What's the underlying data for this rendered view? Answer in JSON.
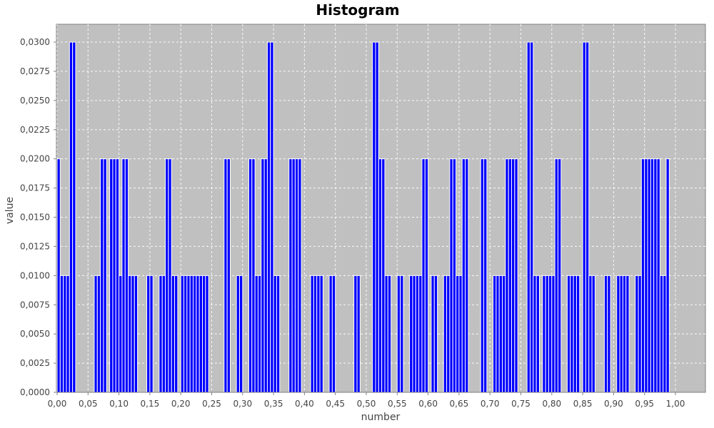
{
  "chart_data": {
    "type": "bar",
    "title": "Histogram",
    "xlabel": "number",
    "ylabel": "value",
    "xlim": [
      0.0,
      1.05
    ],
    "ylim": [
      0.0,
      0.031
    ],
    "grid": true,
    "x_ticks": [
      "0,00",
      "0,05",
      "0,10",
      "0,15",
      "0,20",
      "0,25",
      "0,30",
      "0,35",
      "0,40",
      "0,45",
      "0,50",
      "0,55",
      "0,60",
      "0,65",
      "0,70",
      "0,75",
      "0,80",
      "0,85",
      "0,90",
      "0,95",
      "1,00"
    ],
    "y_ticks": [
      "0,0000",
      "0,0025",
      "0,0050",
      "0,0075",
      "0,0100",
      "0,0125",
      "0,0150",
      "0,0175",
      "0,0200",
      "0,0225",
      "0,0250",
      "0,0275",
      "0,0300"
    ],
    "bin_width": 0.005,
    "bins_start": [
      0.0,
      0.005,
      0.01,
      0.015,
      0.02,
      0.025,
      0.03,
      0.035,
      0.06,
      0.065,
      0.07,
      0.075,
      0.085,
      0.09,
      0.095,
      0.1,
      0.105,
      0.11,
      0.115,
      0.12,
      0.125,
      0.13,
      0.135,
      0.145,
      0.15,
      0.165,
      0.17,
      0.175,
      0.18,
      0.185,
      0.19,
      0.2,
      0.205,
      0.21,
      0.215,
      0.22,
      0.225,
      0.23,
      0.235,
      0.24,
      0.27,
      0.275,
      0.29,
      0.295,
      0.31,
      0.315,
      0.32,
      0.325,
      0.33,
      0.335,
      0.34,
      0.345,
      0.35,
      0.355,
      0.36,
      0.365,
      0.375,
      0.38,
      0.385,
      0.39,
      0.395,
      0.41,
      0.415,
      0.42,
      0.425,
      0.43,
      0.435,
      0.44,
      0.445,
      0.48,
      0.485,
      0.51,
      0.515,
      0.52,
      0.525,
      0.53,
      0.535,
      0.55,
      0.555,
      0.57,
      0.575,
      0.58,
      0.585,
      0.59,
      0.595,
      0.605,
      0.61,
      0.625,
      0.63,
      0.635,
      0.64,
      0.645,
      0.65,
      0.655,
      0.66,
      0.685,
      0.69,
      0.695,
      0.705,
      0.71,
      0.715,
      0.72,
      0.725,
      0.73,
      0.735,
      0.74,
      0.76,
      0.765,
      0.77,
      0.775,
      0.785,
      0.79,
      0.795,
      0.8,
      0.805,
      0.81,
      0.825,
      0.83,
      0.835,
      0.84,
      0.845,
      0.85,
      0.855,
      0.86,
      0.865,
      0.87,
      0.885,
      0.89,
      0.905,
      0.91,
      0.915,
      0.92,
      0.925,
      0.93,
      0.935,
      0.94,
      0.945,
      0.95,
      0.955,
      0.96,
      0.965,
      0.97,
      0.975,
      0.98,
      0.985
    ],
    "values": [
      0.02,
      0.01,
      0.01,
      0.01,
      0.03,
      0.03,
      0.0,
      0.0,
      0.01,
      0.01,
      0.02,
      0.02,
      0.02,
      0.02,
      0.02,
      0.01,
      0.02,
      0.02,
      0.01,
      0.01,
      0.01,
      0.0,
      0.0,
      0.01,
      0.01,
      0.01,
      0.01,
      0.02,
      0.02,
      0.01,
      0.01,
      0.01,
      0.01,
      0.01,
      0.01,
      0.01,
      0.01,
      0.01,
      0.01,
      0.01,
      0.02,
      0.02,
      0.01,
      0.01,
      0.02,
      0.02,
      0.01,
      0.01,
      0.02,
      0.02,
      0.03,
      0.03,
      0.01,
      0.01,
      0.0,
      0.0,
      0.02,
      0.02,
      0.02,
      0.02,
      0.0,
      0.01,
      0.01,
      0.01,
      0.01,
      0.0,
      0.0,
      0.01,
      0.01,
      0.01,
      0.01,
      0.03,
      0.03,
      0.02,
      0.02,
      0.01,
      0.01,
      0.01,
      0.01,
      0.01,
      0.01,
      0.01,
      0.01,
      0.02,
      0.02,
      0.01,
      0.01,
      0.01,
      0.01,
      0.02,
      0.02,
      0.01,
      0.01,
      0.02,
      0.02,
      0.02,
      0.02,
      0.0,
      0.01,
      0.01,
      0.01,
      0.01,
      0.02,
      0.02,
      0.02,
      0.02,
      0.03,
      0.03,
      0.01,
      0.01,
      0.01,
      0.01,
      0.01,
      0.01,
      0.02,
      0.02,
      0.01,
      0.01,
      0.01,
      0.01,
      0.0,
      0.03,
      0.03,
      0.01,
      0.01,
      0.0,
      0.01,
      0.01,
      0.01,
      0.01,
      0.01,
      0.01,
      0.0,
      0.0,
      0.01,
      0.01,
      0.02,
      0.02,
      0.02,
      0.02,
      0.02,
      0.02,
      0.01,
      0.01,
      0.02
    ],
    "colors": {
      "bar_fill": "#0000ff",
      "bar_stroke": "#ffffff",
      "plot_bg": "#c0c0c0",
      "grid": "#ffffff",
      "axis": "#808080"
    }
  }
}
